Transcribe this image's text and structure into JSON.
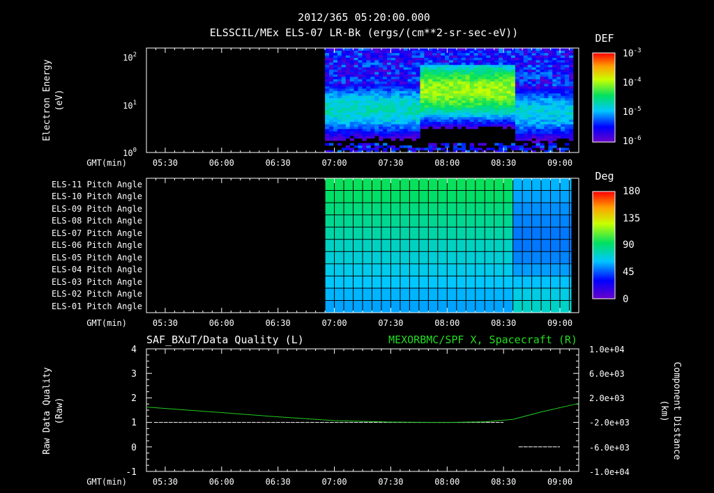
{
  "header": {
    "timestamp": "2012/365 05:20:00.000",
    "title": "ELSSCIL/MEx ELS-07 LR-Bk  (ergs/(cm**2-sr-sec-eV))"
  },
  "time_axis": {
    "label": "GMT(min)",
    "ticks": [
      "05:30",
      "06:00",
      "06:30",
      "07:00",
      "07:30",
      "08:00",
      "08:30",
      "09:00"
    ]
  },
  "spectrogram": {
    "ylabel_line1": "Electron Energy",
    "ylabel_line2": "(eV)",
    "yticks": [
      {
        "base": "10",
        "exp": "2",
        "value": 100
      },
      {
        "base": "10",
        "exp": "1",
        "value": 10
      },
      {
        "base": "10",
        "exp": "0",
        "value": 1
      }
    ],
    "colorbar": {
      "title": "DEF",
      "ticks": [
        {
          "base": "10",
          "exp": "-3"
        },
        {
          "base": "10",
          "exp": "-4"
        },
        {
          "base": "10",
          "exp": "-5"
        },
        {
          "base": "10",
          "exp": "-6"
        }
      ]
    }
  },
  "pitch": {
    "labels": [
      "ELS-11 Pitch Angle",
      "ELS-10 Pitch Angle",
      "ELS-09 Pitch Angle",
      "ELS-08 Pitch Angle",
      "ELS-07 Pitch Angle",
      "ELS-06 Pitch Angle",
      "ELS-05 Pitch Angle",
      "ELS-04 Pitch Angle",
      "ELS-03 Pitch Angle",
      "ELS-02 Pitch Angle",
      "ELS-01 Pitch Angle"
    ],
    "colorbar": {
      "title": "Deg",
      "ticks": [
        "180",
        "135",
        "90",
        "45",
        "0"
      ]
    }
  },
  "lineplot": {
    "left_title": "SAF_BXuT/Data Quality (L)",
    "right_title": "MEXORBMC/SPF X, Spacecraft (R)",
    "left_ylabel_line1": "Raw Data Quality",
    "left_ylabel_line2": "(Raw)",
    "right_ylabel_line1": "Component Distance",
    "right_ylabel_line2": "(km)",
    "left_ticks": [
      "4",
      "3",
      "2",
      "1",
      "0",
      "-1"
    ],
    "right_ticks": [
      "1.0e+04",
      "6.0e+03",
      "2.0e+03",
      "-2.0e+03",
      "-6.0e+03",
      "-1.0e+04"
    ]
  },
  "colors": {
    "background": "#000000",
    "distance_line": "#22cc22",
    "quality_line": "#ffffff",
    "title_right": "#22dd22"
  },
  "chart_data": [
    {
      "type": "heatmap",
      "title": "ELSSCIL/MEx ELS-07 LR-Bk  (ergs/(cm**2-sr-sec-eV))",
      "ylabel": "Electron Energy (eV)",
      "xlabel": "GMT(min)",
      "xlim": [
        "05:20",
        "09:10"
      ],
      "ylim": [
        1,
        150
      ],
      "yscale": "log",
      "data_start": "06:55",
      "data_end": "09:06",
      "colorbar_label": "DEF",
      "colorbar_range": [
        1e-06,
        0.001
      ],
      "segments": [
        {
          "start": "06:55",
          "end": "07:45",
          "peak_energy_eV": 8,
          "peak_def": 2e-05
        },
        {
          "start": "07:45",
          "end": "08:35",
          "peak_energy_eV": 20,
          "peak_def": 0.0001
        },
        {
          "start": "08:35",
          "end": "09:06",
          "peak_energy_eV": 7,
          "peak_def": 1.5e-05
        }
      ]
    },
    {
      "type": "heatmap",
      "xlabel": "GMT(min)",
      "rows": [
        "ELS-11",
        "ELS-10",
        "ELS-09",
        "ELS-08",
        "ELS-07",
        "ELS-06",
        "ELS-05",
        "ELS-04",
        "ELS-03",
        "ELS-02",
        "ELS-01"
      ],
      "colorbar_label": "Deg",
      "colorbar_range": [
        0,
        180
      ],
      "data_start": "06:55",
      "data_end": "09:06",
      "pitch_angle_deg": {
        "before_08:35": [
          95,
          92,
          88,
          84,
          80,
          75,
          71,
          67,
          63,
          60,
          57
        ],
        "after_08:35": [
          60,
          57,
          54,
          52,
          50,
          50,
          52,
          56,
          62,
          68,
          74
        ]
      }
    },
    {
      "type": "line",
      "xlabel": "GMT(min)",
      "xlim": [
        "05:20",
        "09:10"
      ],
      "ylim_left": [
        -1,
        4
      ],
      "ylim_right": [
        -10000,
        10000
      ],
      "series": [
        {
          "name": "SAF_BXuT/Data Quality",
          "axis": "left",
          "segments": [
            {
              "x": [
                "05:24",
                "08:30"
              ],
              "y": [
                1,
                1
              ]
            },
            {
              "x": [
                "08:38",
                "09:00"
              ],
              "y": [
                0,
                0
              ]
            }
          ]
        },
        {
          "name": "MEXORBMC/SPF X, Spacecraft",
          "axis": "right",
          "x": [
            "05:20",
            "06:00",
            "06:30",
            "07:00",
            "07:30",
            "08:00",
            "08:20",
            "08:35",
            "08:50",
            "09:10"
          ],
          "y": [
            500,
            -400,
            -1100,
            -1700,
            -1950,
            -2000,
            -1900,
            -1500,
            -300,
            1100
          ]
        }
      ]
    }
  ]
}
